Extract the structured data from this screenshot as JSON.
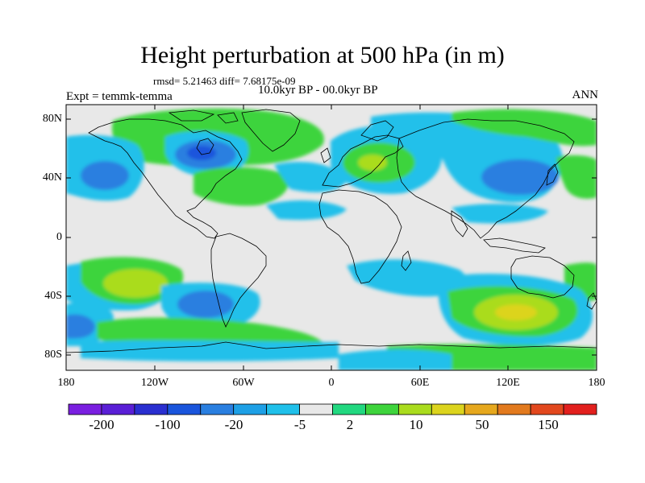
{
  "header": {
    "title": "Height perturbation at 500 hPa (in m)",
    "stats": "rmsd= 5.21463 diff= 7.68175e-09",
    "period": "10.0kyr BP - 00.0kyr BP",
    "experiment": "Expt = temmk-temma",
    "season": "ANN"
  },
  "axes": {
    "y_ticks": [
      "80N",
      "40N",
      "0",
      "40S",
      "80S"
    ],
    "x_ticks": [
      "180",
      "120W",
      "60W",
      "0",
      "60E",
      "120E",
      "180"
    ]
  },
  "colorbar": {
    "colors": [
      "#7a1fe0",
      "#5a1fd6",
      "#2a2fd0",
      "#1a55dc",
      "#2a7fe0",
      "#1ea0e6",
      "#20c0ea",
      "#e8e8e8",
      "#22d880",
      "#3ed43c",
      "#aadc1e",
      "#dcd41e",
      "#e6a81e",
      "#e27a1e",
      "#e2481e",
      "#e2201e"
    ],
    "labels": [
      "-200",
      "-100",
      "-20",
      "-5",
      "2",
      "10",
      "50",
      "150"
    ]
  },
  "map_colors": {
    "ocean_background": "#e8e8e8",
    "coastline": "#000000"
  }
}
